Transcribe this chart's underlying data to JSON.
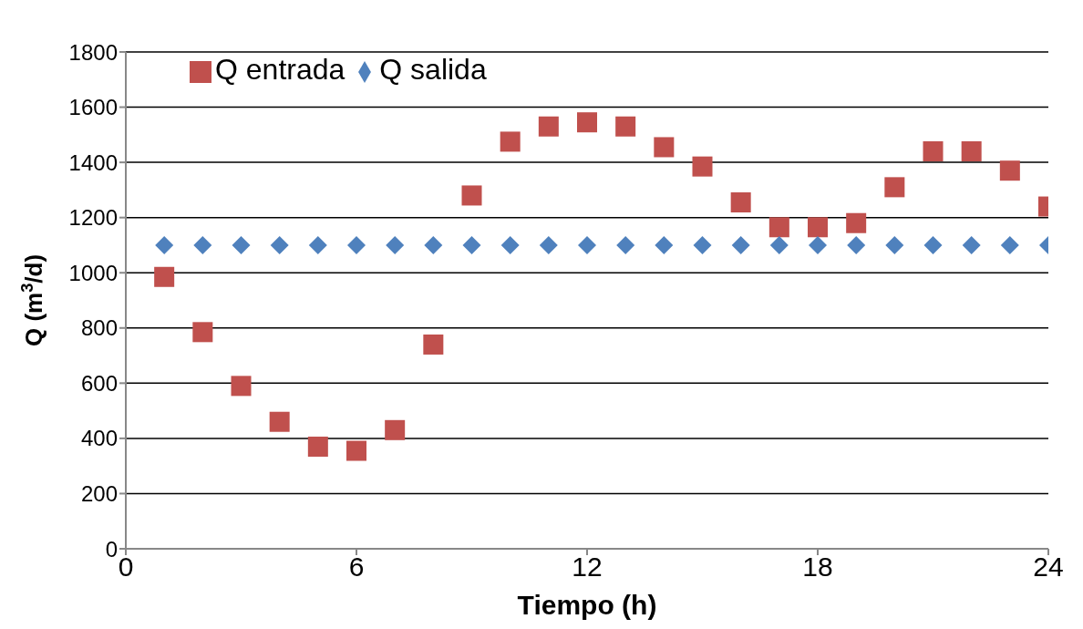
{
  "chart_data": {
    "type": "scatter",
    "xlabel": "Tiempo (h)",
    "ylabel": "Q (m$^{3}$/d)",
    "x": [
      1,
      2,
      3,
      4,
      5,
      6,
      7,
      8,
      9,
      10,
      11,
      12,
      13,
      14,
      15,
      16,
      17,
      18,
      19,
      20,
      21,
      22,
      23,
      24
    ],
    "series": [
      {
        "name": "Q entrada",
        "color": "#c0504d",
        "marker": "square",
        "values": [
          985,
          785,
          590,
          460,
          370,
          355,
          430,
          740,
          1280,
          1475,
          1530,
          1545,
          1530,
          1455,
          1385,
          1255,
          1165,
          1165,
          1180,
          1310,
          1440,
          1440,
          1370,
          1240
        ]
      },
      {
        "name": "Q salida",
        "color": "#4f81bd",
        "marker": "diamond",
        "values": [
          1100,
          1100,
          1100,
          1100,
          1100,
          1100,
          1100,
          1100,
          1100,
          1100,
          1100,
          1100,
          1100,
          1100,
          1100,
          1100,
          1100,
          1100,
          1100,
          1100,
          1100,
          1100,
          1100,
          1100
        ]
      }
    ],
    "xlim": [
      0,
      24
    ],
    "xticks": [
      0,
      6,
      12,
      18,
      24
    ],
    "ylim": [
      0,
      1800
    ],
    "yticks": [
      0,
      200,
      400,
      600,
      800,
      1000,
      1200,
      1400,
      1600,
      1800
    ],
    "grid": "y",
    "legend": "top left"
  }
}
